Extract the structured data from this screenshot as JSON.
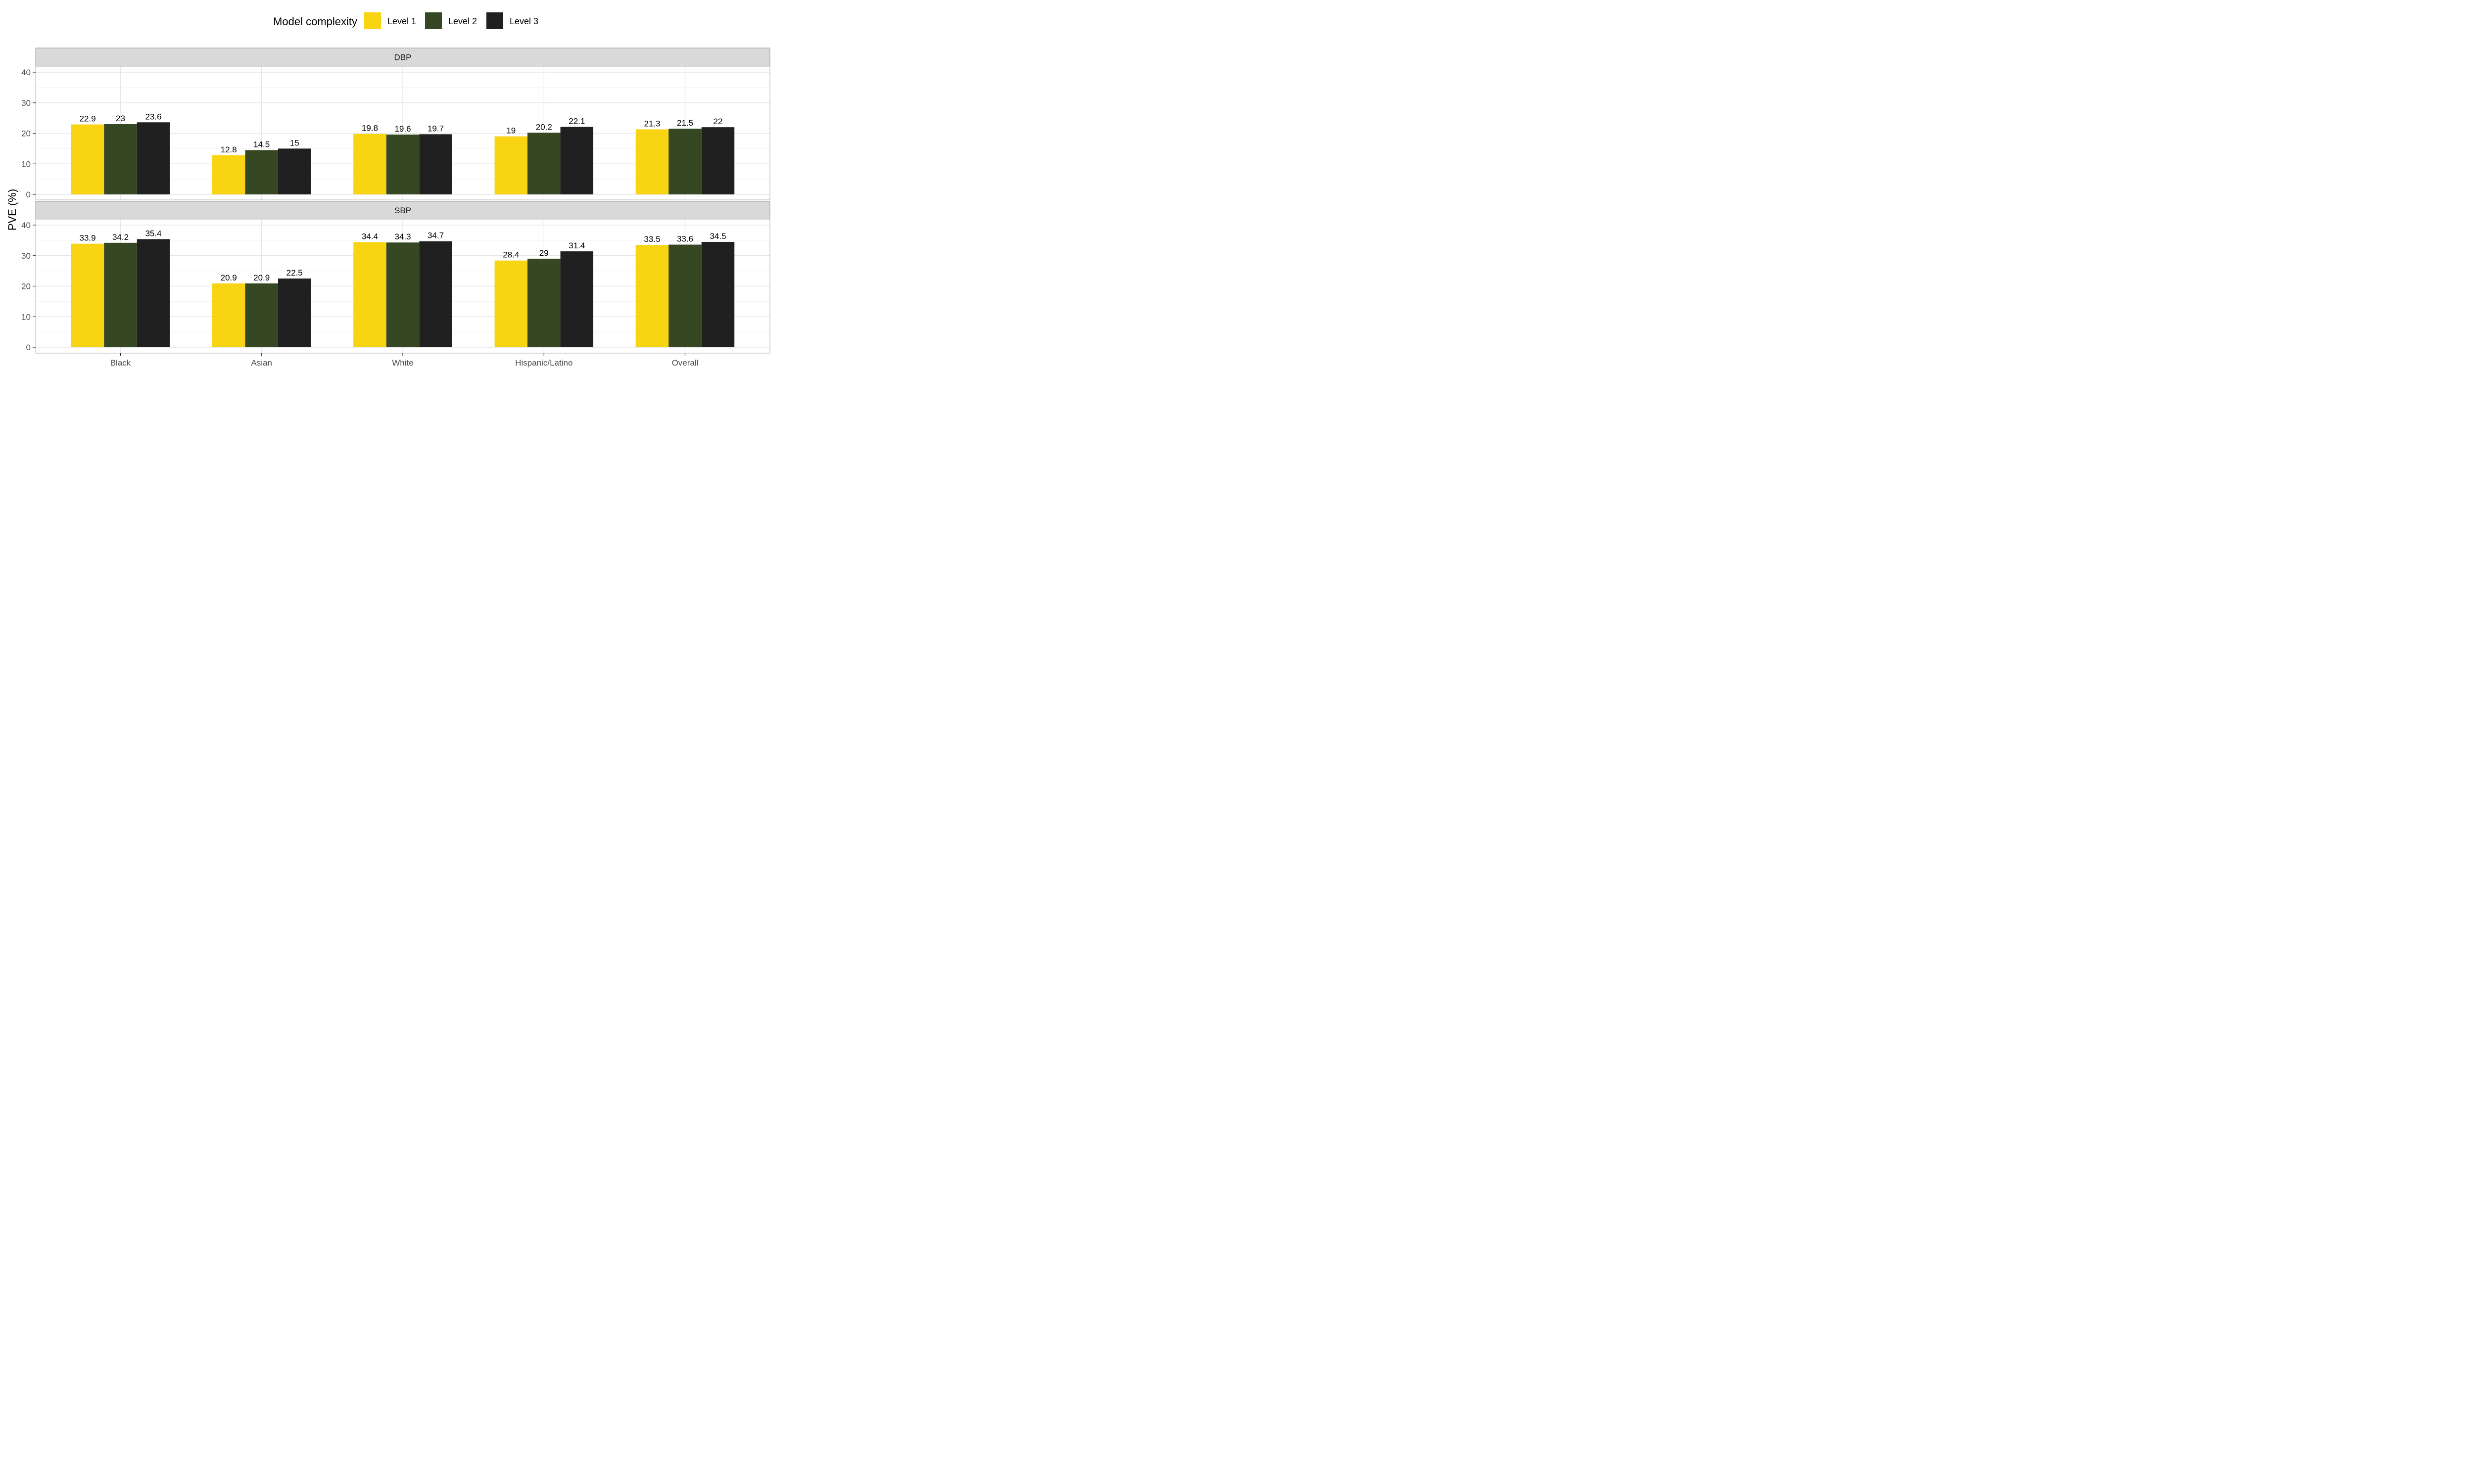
{
  "chart_data": {
    "type": "bar",
    "ylabel": "PVE (%)",
    "xlabel": "",
    "ylim": [
      0,
      40
    ],
    "yticks": [
      0,
      10,
      20,
      30,
      40
    ],
    "categories": [
      "Black",
      "Asian",
      "White",
      "Hispanic/Latino",
      "Overall"
    ],
    "legend": {
      "title": "Model complexity",
      "placement": "top",
      "entries": [
        "Level 1",
        "Level 2",
        "Level 3"
      ]
    },
    "colors": [
      "#F9D412",
      "#364723",
      "#202020"
    ],
    "grid": true,
    "panels": [
      {
        "label": "DBP",
        "series": [
          {
            "name": "Level 1",
            "values": [
              22.9,
              12.8,
              19.8,
              19,
              21.3
            ]
          },
          {
            "name": "Level 2",
            "values": [
              23,
              14.5,
              19.6,
              20.2,
              21.5
            ]
          },
          {
            "name": "Level 3",
            "values": [
              23.6,
              15,
              19.7,
              22.1,
              22
            ]
          }
        ]
      },
      {
        "label": "SBP",
        "series": [
          {
            "name": "Level 1",
            "values": [
              33.9,
              20.9,
              34.4,
              28.4,
              33.5
            ]
          },
          {
            "name": "Level 2",
            "values": [
              34.2,
              20.9,
              34.3,
              29,
              33.6
            ]
          },
          {
            "name": "Level 3",
            "values": [
              35.4,
              22.5,
              34.7,
              31.4,
              34.5
            ]
          }
        ]
      }
    ]
  }
}
